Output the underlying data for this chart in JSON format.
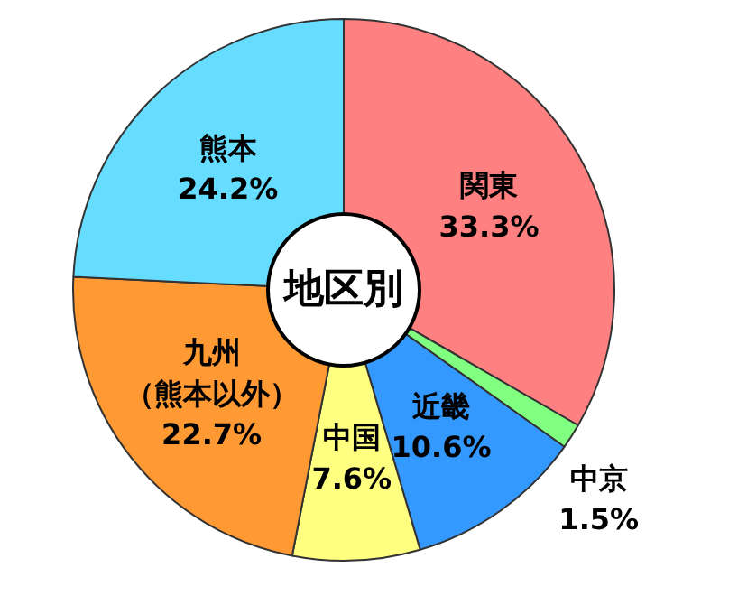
{
  "chart_data": {
    "type": "donut",
    "title": "地区別",
    "categories": [
      "関東",
      "中京",
      "近畿",
      "中国",
      "九州（熊本以外）",
      "熊本"
    ],
    "values": [
      33.3,
      1.5,
      10.6,
      7.6,
      22.7,
      24.2
    ],
    "value_labels": [
      "33.3%",
      "1.5%",
      "10.6%",
      "7.6%",
      "22.7%",
      "24.2%"
    ],
    "colors": [
      "#ff8080",
      "#80ff80",
      "#3399ff",
      "#ffff80",
      "#ff9933",
      "#66ddff"
    ]
  }
}
